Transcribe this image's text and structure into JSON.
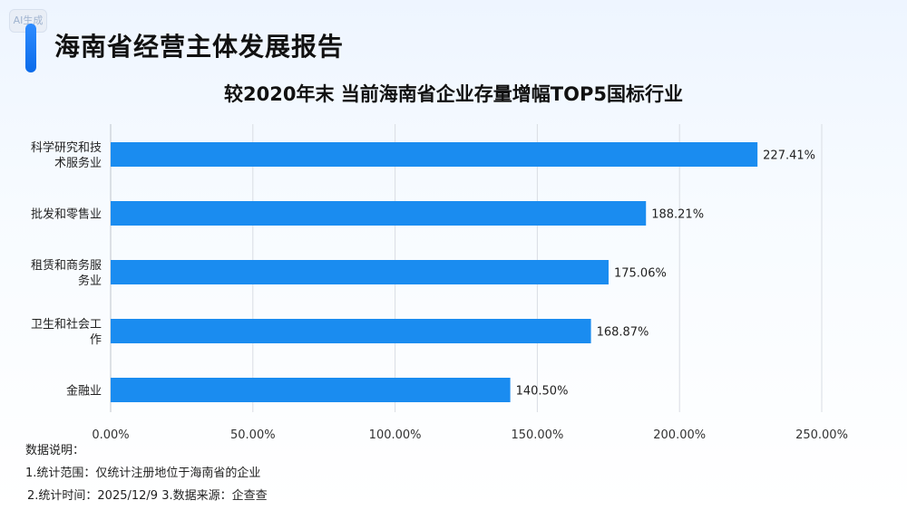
{
  "badge": "AI生成",
  "header": {
    "title": "海南省经营主体发展报告"
  },
  "chart_data": {
    "type": "bar",
    "orientation": "horizontal",
    "title": "较2020年末 当前海南省企业存量增幅TOP5国标行业",
    "categories": [
      [
        "科学研究和技",
        "术服务业"
      ],
      [
        "批发和零售业"
      ],
      [
        "租赁和商务服",
        "务业"
      ],
      [
        "卫生和社会工",
        "作"
      ],
      [
        "金融业"
      ]
    ],
    "values": [
      227.41,
      188.21,
      175.06,
      168.87,
      140.5
    ],
    "value_labels": [
      "227.41%",
      "188.21%",
      "175.06%",
      "168.87%",
      "140.50%"
    ],
    "xlim": [
      0,
      250
    ],
    "xticks": [
      0,
      50,
      100,
      150,
      200,
      250
    ],
    "xtick_labels": [
      "0.00%",
      "50.00%",
      "100.00%",
      "150.00%",
      "200.00%",
      "250.00%"
    ],
    "bar_color": "#1a8cf0",
    "grid": true
  },
  "notes": {
    "heading": "数据说明：",
    "line1": "1.统计范围：仅统计注册地位于海南省的企业",
    "line2": "2.统计时间：2025/12/9  3.数据来源：企查查"
  }
}
